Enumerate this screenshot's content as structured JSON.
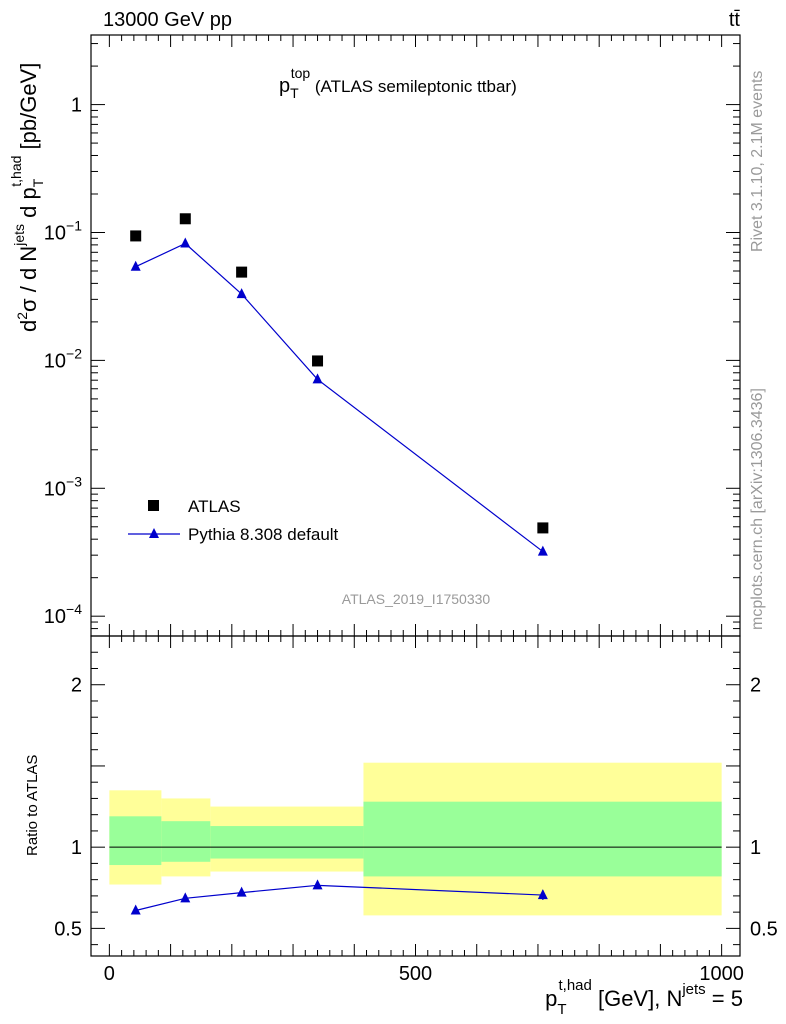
{
  "header": {
    "energy_label": "13000 GeV pp",
    "process_label": "tt̄"
  },
  "side": {
    "rivet_label": "Rivet 3.1.10,  2.1M events",
    "mcplots_label": "mcplots.cern.ch [arXiv:1306.3436]"
  },
  "chart_data": [
    {
      "type": "scatter",
      "title": {
        "main": "p",
        "sub": "T",
        "sup": "top",
        "rest": " (ATLAS semileptonic ttbar)"
      },
      "ylabel": {
        "prefix": "d",
        "sup1": "2",
        "mid1": "σ /  d N",
        "sup2": "jets",
        "mid2": " d p",
        "sub3": "T",
        "sup3": "t,had",
        "suffix": " [pb/GeV]"
      },
      "yscale": "log",
      "ylim": [
        7e-05,
        3.5
      ],
      "xlim": [
        -30,
        1030
      ],
      "y_tick_labels": [
        {
          "value": 1,
          "base": "1",
          "exp": ""
        },
        {
          "value": 0.1,
          "base": "10",
          "exp": "−1"
        },
        {
          "value": 0.01,
          "base": "10",
          "exp": "−2"
        },
        {
          "value": 0.001,
          "base": "10",
          "exp": "−3"
        },
        {
          "value": 0.0001,
          "base": "10",
          "exp": "−4"
        }
      ],
      "legend_position": "bottom-left",
      "watermark": "ATLAS_2019_I1750330",
      "series": [
        {
          "name": "ATLAS",
          "marker": "square",
          "color": "#000000",
          "x": [
            43,
            124,
            216,
            340,
            708
          ],
          "y": [
            0.094,
            0.128,
            0.049,
            0.0099,
            0.00049
          ]
        },
        {
          "name": "Pythia 8.308 default",
          "marker": "triangle",
          "color": "#0000cc",
          "x": [
            43,
            124,
            216,
            340,
            708
          ],
          "y": [
            0.054,
            0.082,
            0.033,
            0.0071,
            0.00032
          ]
        }
      ]
    },
    {
      "type": "line",
      "ylabel": "Ratio to ATLAS",
      "ylim": [
        0.33,
        2.3
      ],
      "xlim": [
        -30,
        1030
      ],
      "xlabel": {
        "main": "p",
        "sub": "T",
        "sup": "t,had",
        "mid": " [GeV], N",
        "sup2": "jets",
        "end": " = 5"
      },
      "x_tick_labels": [
        0,
        500,
        1000
      ],
      "y_tick_labels": [
        {
          "value": 0.5,
          "label": "0.5"
        },
        {
          "value": 1,
          "label": "1"
        },
        {
          "value": 2,
          "label": "2"
        }
      ],
      "reference_line": 1,
      "uncertainty_bands": [
        {
          "x0": 0,
          "x1": 85,
          "yellow": [
            0.77,
            1.35
          ],
          "green": [
            0.89,
            1.19
          ]
        },
        {
          "x0": 85,
          "x1": 165,
          "yellow": [
            0.82,
            1.3
          ],
          "green": [
            0.91,
            1.16
          ]
        },
        {
          "x0": 165,
          "x1": 415,
          "yellow": [
            0.85,
            1.25
          ],
          "green": [
            0.93,
            1.13
          ]
        },
        {
          "x0": 415,
          "x1": 1000,
          "yellow": [
            0.58,
            1.52
          ],
          "green": [
            0.82,
            1.28
          ]
        }
      ],
      "band_colors": {
        "yellow": "#ffff99",
        "green": "#99ff99"
      },
      "series": [
        {
          "name": "Pythia 8.308 default",
          "color": "#0000cc",
          "x": [
            43,
            124,
            216,
            340,
            708
          ],
          "y": [
            0.61,
            0.685,
            0.72,
            0.765,
            0.705
          ],
          "err": [
            0.015,
            0.012,
            0.012,
            0.012,
            0.03
          ]
        }
      ]
    }
  ]
}
